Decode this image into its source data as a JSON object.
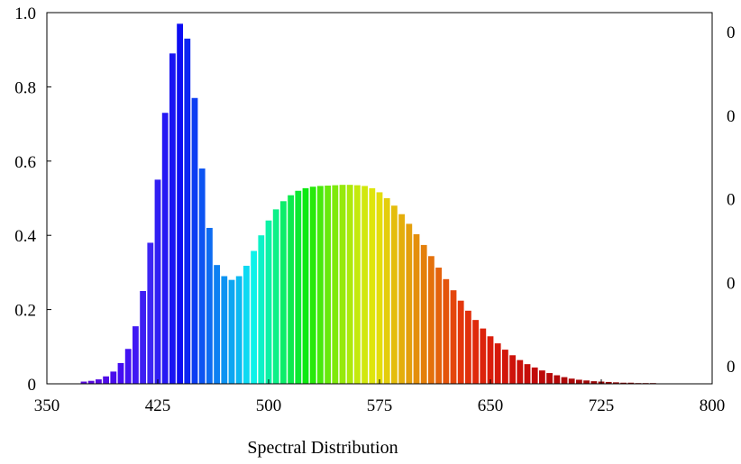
{
  "chart_data": {
    "type": "bar",
    "title": "",
    "xlabel": "Spectral Distribution",
    "ylabel": "",
    "xlim": [
      350,
      800
    ],
    "ylim": [
      0,
      1.0
    ],
    "x_ticks": [
      "350",
      "425",
      "500",
      "575",
      "650",
      "725",
      "800"
    ],
    "y_ticks": [
      "0",
      "0.2",
      "0.4",
      "0.6",
      "0.8",
      "1.0"
    ],
    "y2_ticks": [
      "0",
      "0",
      "0",
      "0",
      "0"
    ],
    "grid": false,
    "legend": "none",
    "bar_color_mode": "visible-spectrum",
    "series": [
      {
        "x": [
          375,
          380,
          385,
          390,
          395,
          400,
          405,
          410,
          415,
          420,
          425,
          430,
          435,
          440,
          445,
          450,
          455,
          460,
          465,
          470,
          475,
          480,
          485,
          490,
          495,
          500,
          505,
          510,
          515,
          520,
          525,
          530,
          535,
          540,
          545,
          550,
          555,
          560,
          565,
          570,
          575,
          580,
          585,
          590,
          595,
          600,
          605,
          610,
          615,
          620,
          625,
          630,
          635,
          640,
          645,
          650,
          655,
          660,
          665,
          670,
          675,
          680,
          685,
          690,
          695,
          700,
          705,
          710,
          715,
          720,
          725,
          730,
          735,
          740,
          745,
          750,
          755,
          760,
          765,
          770,
          775,
          780
        ],
        "values": [
          0.006,
          0.008,
          0.012,
          0.02,
          0.033,
          0.056,
          0.094,
          0.155,
          0.25,
          0.38,
          0.55,
          0.73,
          0.89,
          0.97,
          0.93,
          0.77,
          0.58,
          0.42,
          0.32,
          0.29,
          0.28,
          0.29,
          0.318,
          0.358,
          0.4,
          0.44,
          0.47,
          0.492,
          0.508,
          0.52,
          0.527,
          0.531,
          0.533,
          0.534,
          0.535,
          0.536,
          0.536,
          0.535,
          0.533,
          0.527,
          0.516,
          0.5,
          0.48,
          0.457,
          0.431,
          0.403,
          0.374,
          0.344,
          0.313,
          0.282,
          0.252,
          0.224,
          0.197,
          0.172,
          0.149,
          0.128,
          0.109,
          0.092,
          0.077,
          0.064,
          0.053,
          0.044,
          0.036,
          0.029,
          0.023,
          0.018,
          0.014,
          0.011,
          0.009,
          0.007,
          0.006,
          0.005,
          0.004,
          0.003,
          0.003,
          0.002,
          0.002,
          0.002,
          0.001,
          0.001,
          0.001,
          0.001
        ]
      }
    ]
  }
}
